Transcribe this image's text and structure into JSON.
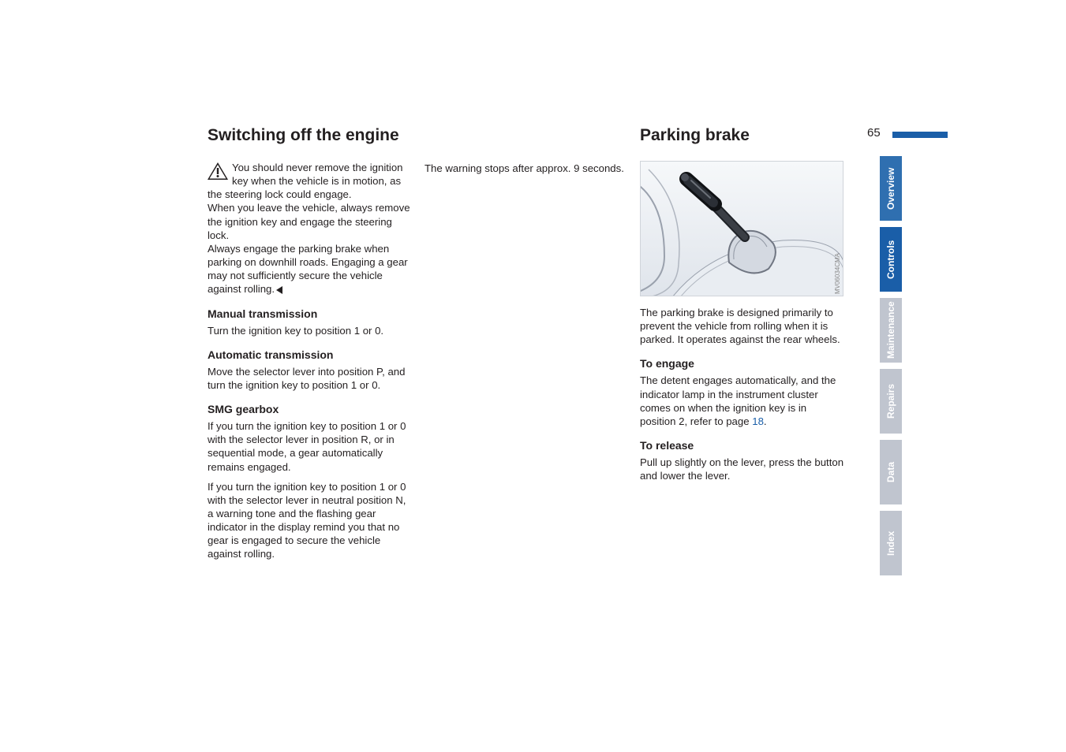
{
  "pageNumber": "65",
  "col1": {
    "title": "Switching off the engine",
    "warning": "You should never remove the ignition key when the vehicle is in motion, as the steering lock could engage.\nWhen you leave the vehicle, always remove the ignition key and engage the steering lock.\nAlways engage the parking brake when parking on downhill roads. Engaging a gear may not sufficiently secure the vehicle against rolling.",
    "manualHead": "Manual transmission",
    "manualBody": "Turn the ignition key to position 1 or 0.",
    "autoHead": "Automatic transmission",
    "autoBody": "Move the selector lever into position P, and turn the ignition key to position 1 or 0.",
    "smgHead": "SMG gearbox",
    "smgBody1": "If you turn the ignition key to position 1 or 0 with the selector lever in position R, or in sequential mode, a gear automatically remains engaged.",
    "smgBody2": "If you turn the ignition key to position 1 or 0 with the selector lever in neutral position N, a warning tone and the flashing gear indicator in the display remind you that no gear is engaged to secure the vehicle against rolling."
  },
  "col2": {
    "continuation": "The warning stops after approx. 9 seconds."
  },
  "col3": {
    "title": "Parking brake",
    "figureLabel": "MV06034CMA",
    "desc": "The parking brake is designed primarily to prevent the vehicle from rolling when it is parked. It operates against the rear wheels.",
    "engageHead": "To engage",
    "engageBody": "The detent engages automatically, and the indicator lamp in the instrument cluster comes on when the ignition key is in position 2, refer to page ",
    "engageLink": "18",
    "engagePost": ".",
    "releaseHead": "To release",
    "releaseBody": "Pull up slightly on the lever, press the button and lower the lever."
  },
  "tabs": {
    "overview": "Overview",
    "controls": "Controls",
    "maintenance": "Maintenance",
    "repairs": "Repairs",
    "data": "Data",
    "index": "Index"
  },
  "colors": {
    "brand": "#1a5ea8",
    "inactiveTab": "#c0c5cf",
    "text": "#231f20"
  }
}
